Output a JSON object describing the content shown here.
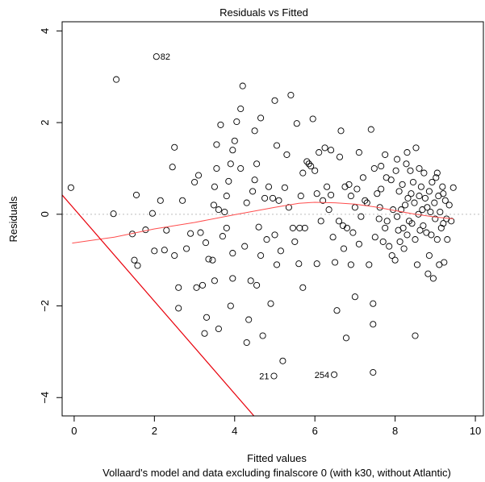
{
  "chart_data": {
    "type": "scatter",
    "title": "Residuals vs Fitted",
    "xlabel": "Fitted values",
    "ylabel": "Residuals",
    "subtitle": "Vollaard's model and data excluding finalscore 0 (with k30, without Atlantic)",
    "xlim": [
      -0.3,
      10.2
    ],
    "ylim": [
      -4.4,
      4.2
    ],
    "x_ticks": [
      "0",
      "2",
      "4",
      "6",
      "8",
      "10"
    ],
    "y_ticks": [
      "−4",
      "−2",
      "0",
      "2",
      "4"
    ],
    "zero_line": 0,
    "colors": {
      "points": "#000000",
      "smooth": "#ff4d4d",
      "diagonal": "#e8000b",
      "zero": "#bdbdbd"
    },
    "labeled_points": [
      {
        "label": "82",
        "x": 2.05,
        "y": 3.44
      },
      {
        "label": "21",
        "x": 4.98,
        "y": -3.53
      },
      {
        "label": "254",
        "x": 6.48,
        "y": -3.5
      }
    ],
    "points": [
      [
        -0.08,
        0.58
      ],
      [
        0.98,
        0.01
      ],
      [
        1.05,
        2.94
      ],
      [
        1.45,
        -0.43
      ],
      [
        1.5,
        -1.0
      ],
      [
        1.58,
        -1.12
      ],
      [
        1.55,
        0.42
      ],
      [
        1.78,
        -0.34
      ],
      [
        1.95,
        0.02
      ],
      [
        2.15,
        0.3
      ],
      [
        2.25,
        -0.78
      ],
      [
        2.3,
        -0.35
      ],
      [
        2.45,
        1.03
      ],
      [
        2.5,
        1.46
      ],
      [
        2.6,
        -1.6
      ],
      [
        2.6,
        -2.05
      ],
      [
        2.7,
        0.3
      ],
      [
        2.8,
        -0.75
      ],
      [
        2.9,
        -0.42
      ],
      [
        3.05,
        -1.6
      ],
      [
        3.1,
        0.85
      ],
      [
        3.2,
        -1.55
      ],
      [
        3.25,
        -2.6
      ],
      [
        3.28,
        -0.62
      ],
      [
        3.3,
        -2.25
      ],
      [
        3.35,
        -0.98
      ],
      [
        3.45,
        -1.0
      ],
      [
        3.5,
        -1.45
      ],
      [
        3.55,
        1.0
      ],
      [
        3.55,
        1.52
      ],
      [
        3.6,
        0.1
      ],
      [
        3.6,
        -2.5
      ],
      [
        3.65,
        1.95
      ],
      [
        3.7,
        -0.48
      ],
      [
        3.75,
        0.05
      ],
      [
        3.8,
        -0.3
      ],
      [
        3.85,
        0.72
      ],
      [
        3.9,
        1.1
      ],
      [
        3.95,
        1.4
      ],
      [
        3.95,
        -0.85
      ],
      [
        4.0,
        1.6
      ],
      [
        4.05,
        2.02
      ],
      [
        4.15,
        1.0
      ],
      [
        4.2,
        2.8
      ],
      [
        4.25,
        -0.7
      ],
      [
        4.3,
        0.25
      ],
      [
        4.35,
        -2.3
      ],
      [
        4.4,
        -1.45
      ],
      [
        4.45,
        0.5
      ],
      [
        4.5,
        0.75
      ],
      [
        4.55,
        1.1
      ],
      [
        4.6,
        -0.28
      ],
      [
        4.65,
        -0.9
      ],
      [
        4.7,
        -2.65
      ],
      [
        4.75,
        0.35
      ],
      [
        4.8,
        -0.55
      ],
      [
        4.85,
        0.6
      ],
      [
        4.9,
        -1.95
      ],
      [
        4.95,
        0.35
      ],
      [
        5.0,
        2.48
      ],
      [
        5.05,
        -1.1
      ],
      [
        5.1,
        0.3
      ],
      [
        5.15,
        -0.8
      ],
      [
        5.2,
        -3.2
      ],
      [
        5.25,
        0.58
      ],
      [
        5.3,
        1.3
      ],
      [
        5.35,
        0.15
      ],
      [
        5.4,
        2.6
      ],
      [
        5.45,
        -0.3
      ],
      [
        5.5,
        -0.6
      ],
      [
        5.55,
        1.98
      ],
      [
        5.6,
        -1.08
      ],
      [
        5.65,
        0.4
      ],
      [
        5.7,
        0.9
      ],
      [
        5.75,
        -0.3
      ],
      [
        5.8,
        1.15
      ],
      [
        5.85,
        1.1
      ],
      [
        5.9,
        1.05
      ],
      [
        5.95,
        2.08
      ],
      [
        6.0,
        0.95
      ],
      [
        6.05,
        0.45
      ],
      [
        6.1,
        1.35
      ],
      [
        6.15,
        -0.15
      ],
      [
        6.2,
        0.3
      ],
      [
        6.25,
        1.45
      ],
      [
        6.3,
        0.6
      ],
      [
        6.35,
        0.1
      ],
      [
        6.4,
        0.42
      ],
      [
        6.45,
        -0.5
      ],
      [
        6.5,
        -1.05
      ],
      [
        6.55,
        -2.1
      ],
      [
        6.6,
        -0.15
      ],
      [
        6.62,
        1.25
      ],
      [
        6.65,
        1.82
      ],
      [
        6.7,
        -0.25
      ],
      [
        6.72,
        -0.75
      ],
      [
        6.75,
        0.6
      ],
      [
        6.8,
        -0.3
      ],
      [
        6.85,
        0.65
      ],
      [
        6.9,
        0.4
      ],
      [
        6.95,
        -0.4
      ],
      [
        7.0,
        0.15
      ],
      [
        7.05,
        0.55
      ],
      [
        7.1,
        1.35
      ],
      [
        7.15,
        -0.05
      ],
      [
        7.2,
        0.8
      ],
      [
        7.25,
        0.3
      ],
      [
        7.3,
        0.25
      ],
      [
        7.35,
        -1.1
      ],
      [
        7.4,
        1.85
      ],
      [
        7.45,
        -2.4
      ],
      [
        7.48,
        1.0
      ],
      [
        7.5,
        -0.5
      ],
      [
        7.55,
        0.45
      ],
      [
        7.6,
        -0.1
      ],
      [
        7.62,
        0.15
      ],
      [
        7.65,
        0.55
      ],
      [
        7.7,
        -0.6
      ],
      [
        7.75,
        -0.3
      ],
      [
        7.78,
        0.8
      ],
      [
        7.8,
        -0.15
      ],
      [
        7.85,
        -0.7
      ],
      [
        7.9,
        0.75
      ],
      [
        7.92,
        -0.9
      ],
      [
        7.95,
        0.1
      ],
      [
        8.0,
        -1.0
      ],
      [
        8.02,
        0.95
      ],
      [
        8.05,
        -0.05
      ],
      [
        8.08,
        -0.35
      ],
      [
        8.1,
        0.5
      ],
      [
        8.12,
        -0.6
      ],
      [
        8.15,
        0.1
      ],
      [
        8.18,
        0.65
      ],
      [
        8.2,
        -0.3
      ],
      [
        8.22,
        -0.75
      ],
      [
        8.25,
        0.2
      ],
      [
        8.28,
        1.1
      ],
      [
        8.3,
        -0.45
      ],
      [
        8.32,
        0.35
      ],
      [
        8.35,
        -0.15
      ],
      [
        8.38,
        0.95
      ],
      [
        8.4,
        0.45
      ],
      [
        8.42,
        -0.2
      ],
      [
        8.45,
        0.7
      ],
      [
        8.48,
        0.25
      ],
      [
        8.5,
        -0.55
      ],
      [
        8.52,
        1.45
      ],
      [
        8.55,
        -1.1
      ],
      [
        8.58,
        0.0
      ],
      [
        8.6,
        0.4
      ],
      [
        8.62,
        -0.35
      ],
      [
        8.65,
        0.6
      ],
      [
        8.68,
        0.1
      ],
      [
        8.7,
        -0.25
      ],
      [
        8.72,
        0.9
      ],
      [
        8.75,
        0.35
      ],
      [
        8.78,
        -0.4
      ],
      [
        8.8,
        0.15
      ],
      [
        8.82,
        -1.3
      ],
      [
        8.85,
        0.5
      ],
      [
        8.88,
        0.05
      ],
      [
        8.9,
        -0.45
      ],
      [
        8.92,
        0.7
      ],
      [
        8.95,
        -1.4
      ],
      [
        8.98,
        0.25
      ],
      [
        9.0,
        -0.1
      ],
      [
        9.02,
        0.8
      ],
      [
        9.05,
        -0.55
      ],
      [
        9.08,
        0.4
      ],
      [
        9.1,
        -1.1
      ],
      [
        9.12,
        0.05
      ],
      [
        9.15,
        -0.3
      ],
      [
        9.18,
        0.6
      ],
      [
        9.2,
        -0.2
      ],
      [
        9.22,
        -1.05
      ],
      [
        9.25,
        0.3
      ],
      [
        9.28,
        -0.1
      ],
      [
        9.3,
        -0.55
      ],
      [
        9.35,
        0.2
      ],
      [
        9.4,
        -0.15
      ],
      [
        9.45,
        0.58
      ],
      [
        6.4,
        1.4
      ],
      [
        3.48,
        0.2
      ],
      [
        3.9,
        -2.0
      ],
      [
        5.05,
        1.5
      ],
      [
        3.95,
        -1.4
      ],
      [
        4.55,
        -1.55
      ],
      [
        5.7,
        -1.6
      ],
      [
        5.62,
        -0.3
      ],
      [
        7.0,
        -1.8
      ],
      [
        7.45,
        -1.95
      ],
      [
        7.45,
        -3.45
      ],
      [
        6.78,
        -2.7
      ],
      [
        8.5,
        -2.65
      ],
      [
        4.3,
        -2.8
      ],
      [
        4.15,
        2.3
      ],
      [
        4.5,
        1.82
      ],
      [
        5.0,
        -0.45
      ],
      [
        6.05,
        -1.08
      ],
      [
        4.65,
        2.1
      ],
      [
        2.0,
        -0.8
      ],
      [
        2.5,
        -0.9
      ],
      [
        3.0,
        0.7
      ],
      [
        3.15,
        -0.4
      ],
      [
        3.5,
        0.6
      ],
      [
        3.8,
        0.4
      ],
      [
        7.65,
        1.05
      ],
      [
        7.75,
        1.3
      ],
      [
        8.05,
        1.2
      ],
      [
        8.3,
        1.35
      ],
      [
        8.6,
        1.0
      ],
      [
        8.85,
        -0.9
      ],
      [
        9.05,
        0.9
      ],
      [
        9.2,
        0.45
      ],
      [
        7.1,
        -0.65
      ],
      [
        6.9,
        -1.1
      ]
    ],
    "smooth_curve": [
      [
        -0.05,
        -0.63
      ],
      [
        1.0,
        -0.5
      ],
      [
        2.0,
        -0.32
      ],
      [
        3.0,
        -0.18
      ],
      [
        4.0,
        -0.01
      ],
      [
        5.0,
        0.15
      ],
      [
        5.6,
        0.24
      ],
      [
        6.0,
        0.26
      ],
      [
        6.5,
        0.25
      ],
      [
        7.0,
        0.22
      ],
      [
        7.5,
        0.16
      ],
      [
        8.0,
        0.08
      ],
      [
        8.5,
        0.0
      ],
      [
        9.0,
        -0.06
      ],
      [
        9.45,
        -0.1
      ]
    ],
    "diagonal_line": [
      [
        -0.3,
        0.42
      ],
      [
        4.5,
        -4.42
      ]
    ]
  }
}
